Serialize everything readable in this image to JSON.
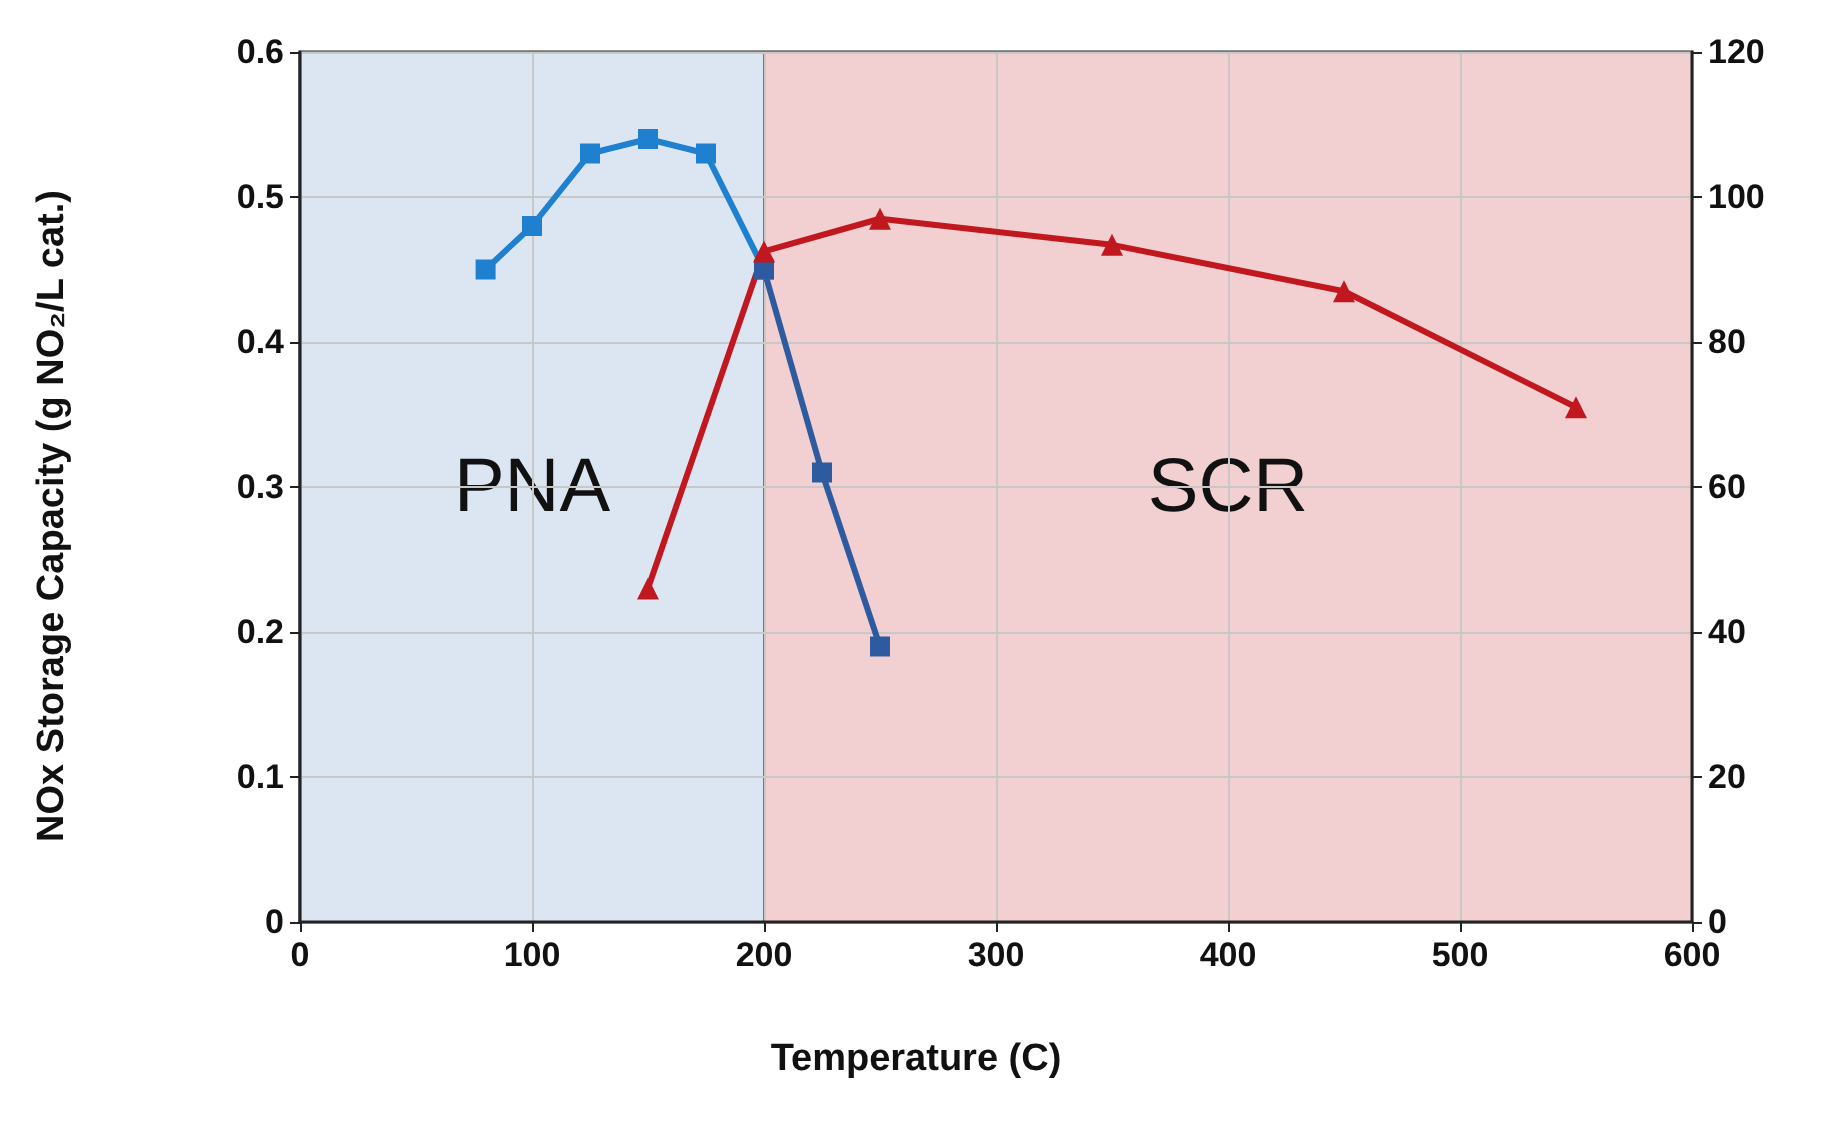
{
  "chart_data": {
    "type": "line",
    "xlabel": "Temperature (C)",
    "ylabel": "NOx Storage Capacity (g NO₂/L cat.)",
    "xlim": [
      0,
      600
    ],
    "xticks": [
      0,
      100,
      200,
      300,
      400,
      500,
      600
    ],
    "ylim": [
      0,
      0.6
    ],
    "yticks": [
      0,
      0.1,
      0.2,
      0.3,
      0.4,
      0.5,
      0.6
    ],
    "y2lim": [
      0,
      120
    ],
    "y2ticks": [
      0,
      20,
      40,
      60,
      80,
      100,
      120
    ],
    "grid": true,
    "line_style": "solid",
    "bands": [
      {
        "axis": "x",
        "from": 0,
        "to": 200,
        "label": "PNA",
        "color": "#dce6f2"
      },
      {
        "axis": "x",
        "from": 200,
        "to": 600,
        "label": "SCR",
        "color": "#f2cfd1"
      }
    ],
    "series": [
      {
        "color": "#1f80d0",
        "marker": "square",
        "x": [
          80,
          100,
          125,
          150,
          175,
          200
        ],
        "values": [
          0.45,
          0.48,
          0.53,
          0.54,
          0.53,
          0.45
        ]
      },
      {
        "color": "#2e5aa0",
        "marker": "square",
        "x": [
          200,
          225,
          250
        ],
        "values": [
          0.45,
          0.31,
          0.19
        ]
      },
      {
        "color": "#c0181e",
        "marker": "triangle",
        "axis": "y2",
        "x": [
          150,
          200,
          250,
          350,
          450,
          550
        ],
        "values": [
          46,
          92.5,
          97,
          93.4,
          87,
          71
        ]
      }
    ]
  }
}
